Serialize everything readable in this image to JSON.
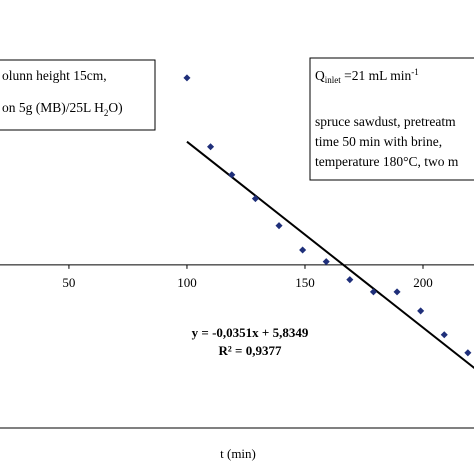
{
  "chart_data": {
    "type": "scatter",
    "x_label": "t (min)",
    "x": [
      100,
      110,
      119,
      129,
      139,
      149,
      159,
      169,
      179,
      189,
      199,
      209,
      219
    ],
    "series": [
      {
        "color": "#1f2f7a",
        "values": [
          3.53,
          2.23,
          1.7,
          1.25,
          0.74,
          0.28,
          0.06,
          -0.28,
          -0.51,
          -0.51,
          -0.87,
          -1.32,
          -1.66
        ]
      }
    ],
    "trendline": {
      "slope": -0.0351,
      "intercept": 5.8349,
      "xlim": [
        100,
        222
      ],
      "color": "#000000"
    },
    "equation": "y = -0,0351x + 5,8349",
    "r_squared": "R² = 0,9377",
    "xlim": [
      20.8,
      221.6
    ],
    "ylim": [
      -3.08,
      5.0
    ],
    "xticks": [
      50,
      100,
      150,
      200
    ],
    "box_left": [
      "olunn height 15cm,",
      "on 5g (MB)/25L  H",
      "2",
      "O)"
    ],
    "box_right": {
      "q": "Q",
      "q_sub": "inlet",
      "q_rest": " =21 mL min",
      "q_sup": "-1",
      "lines": [
        "spruce sawdust, pretreatm",
        "time 50 min  with brine,",
        "temperature 180°C, two m"
      ]
    }
  }
}
